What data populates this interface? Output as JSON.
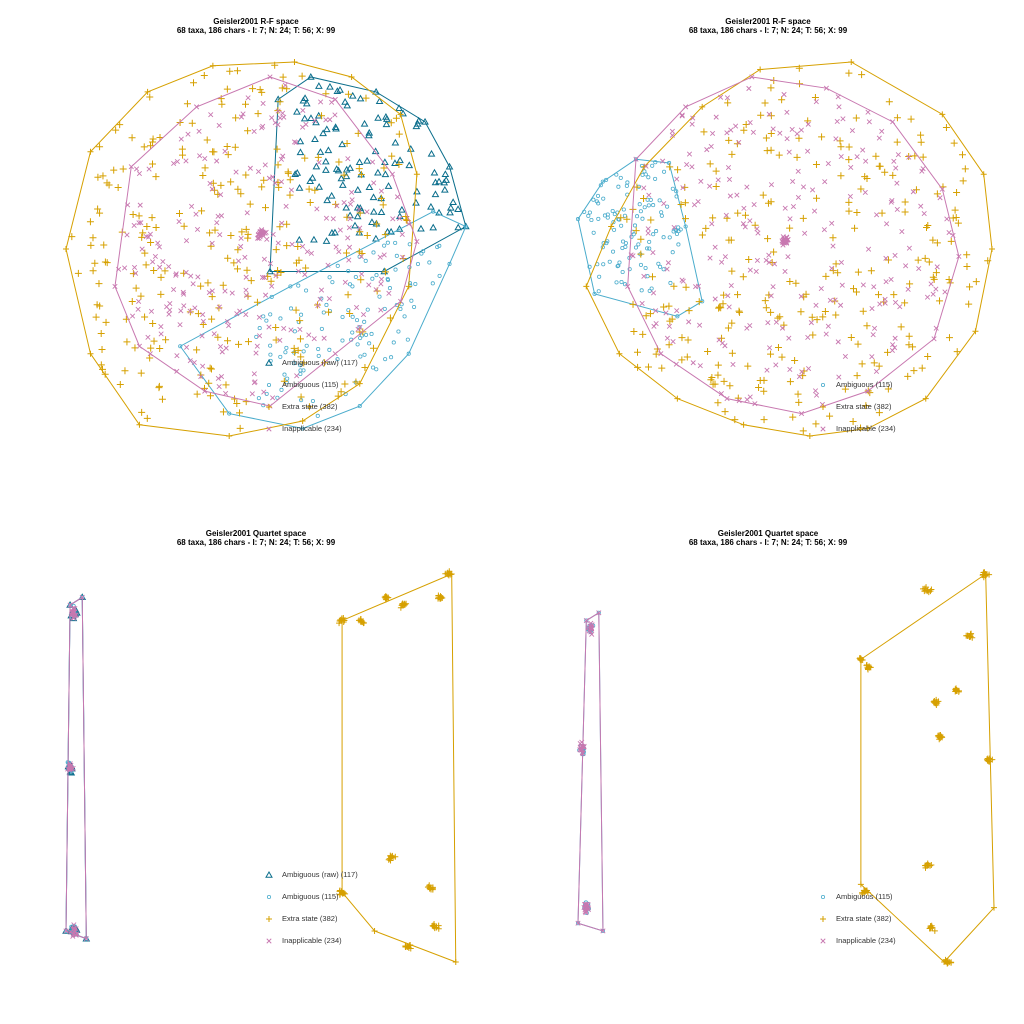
{
  "colors": {
    "ambiguous_raw": "#0b6e8c",
    "ambiguous": "#4aaccc",
    "extra_state": "#d6a000",
    "inapplicable": "#c878b0"
  },
  "chart_data": [
    {
      "type": "scatter",
      "title": "Geisler2001 R-F space",
      "subtitle": "68 taxa, 186 chars - I: 7; N: 24; T: 56; X: 99",
      "xlabel": "",
      "ylabel": "",
      "axes": false,
      "grid": false,
      "xlim": [
        0,
        1
      ],
      "ylim": [
        0,
        1
      ],
      "legend_position": "bottom-center",
      "series": [
        {
          "name": "Ambiguous (raw) (117)",
          "key": "ambiguous_raw",
          "marker": "triangle",
          "count": 117,
          "hull": [
            [
              0.5,
              0.44
            ],
            [
              0.52,
              0.9
            ],
            [
              0.6,
              0.96
            ],
            [
              0.76,
              0.92
            ],
            [
              0.88,
              0.84
            ],
            [
              0.94,
              0.72
            ],
            [
              0.98,
              0.56
            ],
            [
              0.78,
              0.44
            ]
          ],
          "cluster": {
            "cx": 0.78,
            "cy": 0.74,
            "rx": 0.2,
            "ry": 0.2
          }
        },
        {
          "name": "Ambiguous (115)",
          "key": "ambiguous",
          "marker": "circle",
          "count": 115,
          "hull": [
            [
              0.28,
              0.24
            ],
            [
              0.4,
              0.06
            ],
            [
              0.58,
              0.02
            ],
            [
              0.72,
              0.08
            ],
            [
              0.84,
              0.22
            ],
            [
              0.94,
              0.46
            ],
            [
              0.98,
              0.56
            ],
            [
              0.9,
              0.6
            ],
            [
              0.55,
              0.4
            ]
          ],
          "cluster": {
            "cx": 0.72,
            "cy": 0.28,
            "rx": 0.24,
            "ry": 0.22
          }
        },
        {
          "name": "Extra state (382)",
          "key": "extra_state",
          "marker": "plus",
          "count": 382,
          "hull": [
            [
              0.0,
              0.5
            ],
            [
              0.06,
              0.76
            ],
            [
              0.2,
              0.92
            ],
            [
              0.36,
              0.99
            ],
            [
              0.56,
              1.0
            ],
            [
              0.7,
              0.96
            ],
            [
              0.82,
              0.86
            ],
            [
              0.86,
              0.7
            ],
            [
              0.84,
              0.4
            ],
            [
              0.72,
              0.14
            ],
            [
              0.58,
              0.04
            ],
            [
              0.4,
              0.0
            ],
            [
              0.18,
              0.03
            ],
            [
              0.06,
              0.22
            ]
          ],
          "cluster": {
            "cx": 0.44,
            "cy": 0.52,
            "rx": 0.42,
            "ry": 0.46
          }
        },
        {
          "name": "Inapplicable (234)",
          "key": "inapplicable",
          "marker": "x",
          "count": 234,
          "hull": [
            [
              0.16,
              0.72
            ],
            [
              0.32,
              0.88
            ],
            [
              0.5,
              0.96
            ],
            [
              0.66,
              0.9
            ],
            [
              0.8,
              0.7
            ],
            [
              0.86,
              0.52
            ],
            [
              0.82,
              0.36
            ],
            [
              0.66,
              0.22
            ],
            [
              0.5,
              0.08
            ],
            [
              0.34,
              0.12
            ],
            [
              0.18,
              0.24
            ],
            [
              0.12,
              0.4
            ]
          ],
          "cluster": {
            "cx": 0.48,
            "cy": 0.54,
            "rx": 0.34,
            "ry": 0.4
          },
          "dense": {
            "cx": 0.48,
            "cy": 0.54
          }
        }
      ]
    },
    {
      "type": "scatter",
      "title": "Geisler2001 R-F space",
      "subtitle": "68 taxa, 186 chars - I: 7; N: 24; T: 56; X: 99",
      "xlabel": "",
      "ylabel": "",
      "axes": false,
      "grid": false,
      "xlim": [
        0,
        1
      ],
      "ylim": [
        0,
        1
      ],
      "legend_position": "bottom-right",
      "series": [
        {
          "name": "Ambiguous (115)",
          "key": "ambiguous",
          "marker": "circle",
          "count": 115,
          "hull": [
            [
              0.0,
              0.58
            ],
            [
              0.06,
              0.68
            ],
            [
              0.14,
              0.74
            ],
            [
              0.22,
              0.73
            ],
            [
              0.26,
              0.56
            ],
            [
              0.3,
              0.36
            ],
            [
              0.24,
              0.32
            ],
            [
              0.04,
              0.38
            ]
          ],
          "cluster": {
            "cx": 0.12,
            "cy": 0.56,
            "rx": 0.12,
            "ry": 0.16
          }
        },
        {
          "name": "Extra state (382)",
          "key": "extra_state",
          "marker": "plus",
          "count": 382,
          "hull": [
            [
              0.02,
              0.4
            ],
            [
              0.1,
              0.22
            ],
            [
              0.24,
              0.1
            ],
            [
              0.4,
              0.03
            ],
            [
              0.56,
              0.0
            ],
            [
              0.7,
              0.02
            ],
            [
              0.84,
              0.1
            ],
            [
              0.96,
              0.28
            ],
            [
              1.0,
              0.5
            ],
            [
              0.98,
              0.7
            ],
            [
              0.88,
              0.86
            ],
            [
              0.66,
              1.0
            ],
            [
              0.44,
              0.98
            ],
            [
              0.3,
              0.88
            ],
            [
              0.16,
              0.72
            ],
            [
              0.08,
              0.56
            ]
          ],
          "cluster": {
            "cx": 0.56,
            "cy": 0.5,
            "rx": 0.42,
            "ry": 0.46
          }
        },
        {
          "name": "Inapplicable (234)",
          "key": "inapplicable",
          "marker": "x",
          "count": 234,
          "hull": [
            [
              0.12,
              0.4
            ],
            [
              0.14,
              0.74
            ],
            [
              0.26,
              0.88
            ],
            [
              0.42,
              0.96
            ],
            [
              0.6,
              0.93
            ],
            [
              0.76,
              0.84
            ],
            [
              0.88,
              0.66
            ],
            [
              0.92,
              0.48
            ],
            [
              0.86,
              0.26
            ],
            [
              0.7,
              0.12
            ],
            [
              0.54,
              0.06
            ],
            [
              0.36,
              0.1
            ],
            [
              0.2,
              0.22
            ]
          ],
          "cluster": {
            "cx": 0.52,
            "cy": 0.52,
            "rx": 0.36,
            "ry": 0.4
          },
          "dense": {
            "cx": 0.5,
            "cy": 0.52
          }
        }
      ]
    },
    {
      "type": "scatter",
      "title": "Geisler2001 Quartet space",
      "subtitle": "68 taxa, 186 chars - I: 7; N: 24; T: 56; X: 99",
      "xlabel": "",
      "ylabel": "",
      "axes": false,
      "grid": false,
      "xlim": [
        0,
        1
      ],
      "ylim": [
        0,
        1
      ],
      "legend_position": "bottom-center",
      "series": [
        {
          "name": "Ambiguous (raw) (117)",
          "key": "ambiguous_raw",
          "marker": "triangle",
          "count": 117,
          "hull": [
            [
              0.0,
              0.08
            ],
            [
              0.01,
              0.92
            ],
            [
              0.04,
              0.94
            ],
            [
              0.05,
              0.06
            ]
          ],
          "clumps": [
            [
              0.02,
              0.9
            ],
            [
              0.01,
              0.5
            ],
            [
              0.02,
              0.08
            ]
          ]
        },
        {
          "name": "Ambiguous (115)",
          "key": "ambiguous",
          "marker": "circle",
          "count": 115,
          "hull": [
            [
              0.0,
              0.08
            ],
            [
              0.01,
              0.92
            ],
            [
              0.04,
              0.94
            ],
            [
              0.05,
              0.06
            ]
          ],
          "clumps": [
            [
              0.02,
              0.9
            ],
            [
              0.01,
              0.5
            ],
            [
              0.02,
              0.08
            ]
          ]
        },
        {
          "name": "Extra state (382)",
          "key": "extra_state",
          "marker": "plus",
          "count": 382,
          "hull": [
            [
              0.68,
              0.88
            ],
            [
              0.95,
              1.0
            ],
            [
              0.96,
              0.0
            ],
            [
              0.76,
              0.08
            ],
            [
              0.68,
              0.18
            ]
          ],
          "clumps": [
            [
              0.94,
              1.0
            ],
            [
              0.79,
              0.94
            ],
            [
              0.83,
              0.92
            ],
            [
              0.92,
              0.94
            ],
            [
              0.68,
              0.88
            ],
            [
              0.73,
              0.88
            ],
            [
              0.8,
              0.27
            ],
            [
              0.9,
              0.19
            ],
            [
              0.91,
              0.09
            ],
            [
              0.84,
              0.04
            ],
            [
              0.68,
              0.18
            ]
          ]
        },
        {
          "name": "Inapplicable (234)",
          "key": "inapplicable",
          "marker": "x",
          "count": 234,
          "hull": [
            [
              0.0,
              0.08
            ],
            [
              0.01,
              0.92
            ],
            [
              0.04,
              0.94
            ],
            [
              0.05,
              0.06
            ]
          ],
          "clumps": [
            [
              0.02,
              0.9
            ],
            [
              0.01,
              0.5
            ],
            [
              0.02,
              0.08
            ]
          ]
        }
      ]
    },
    {
      "type": "scatter",
      "title": "Geisler2001 Quartet space",
      "subtitle": "68 taxa, 186 chars - I: 7; N: 24; T: 56; X: 99",
      "xlabel": "",
      "ylabel": "",
      "axes": false,
      "grid": false,
      "xlim": [
        0,
        1
      ],
      "ylim": [
        0,
        1
      ],
      "legend_position": "bottom-right",
      "series": [
        {
          "name": "Ambiguous (115)",
          "key": "ambiguous",
          "marker": "circle",
          "count": 115,
          "hull": [
            [
              0.0,
              0.1
            ],
            [
              0.02,
              0.88
            ],
            [
              0.05,
              0.9
            ],
            [
              0.06,
              0.08
            ]
          ],
          "clumps": [
            [
              0.03,
              0.86
            ],
            [
              0.01,
              0.55
            ],
            [
              0.02,
              0.14
            ]
          ]
        },
        {
          "name": "Extra state (382)",
          "key": "extra_state",
          "marker": "plus",
          "count": 382,
          "hull": [
            [
              0.68,
              0.78
            ],
            [
              0.98,
              1.0
            ],
            [
              1.0,
              0.14
            ],
            [
              0.88,
              0.0
            ],
            [
              0.68,
              0.2
            ]
          ],
          "clumps": [
            [
              0.84,
              0.96
            ],
            [
              0.98,
              1.0
            ],
            [
              0.94,
              0.84
            ],
            [
              0.68,
              0.78
            ],
            [
              0.7,
              0.76
            ],
            [
              0.86,
              0.67
            ],
            [
              0.91,
              0.7
            ],
            [
              0.87,
              0.58
            ],
            [
              0.99,
              0.52
            ],
            [
              0.84,
              0.25
            ],
            [
              0.69,
              0.18
            ],
            [
              0.85,
              0.09
            ],
            [
              0.89,
              0.0
            ]
          ]
        },
        {
          "name": "Inapplicable (234)",
          "key": "inapplicable",
          "marker": "x",
          "count": 234,
          "hull": [
            [
              0.0,
              0.1
            ],
            [
              0.02,
              0.88
            ],
            [
              0.05,
              0.9
            ],
            [
              0.06,
              0.08
            ]
          ],
          "clumps": [
            [
              0.03,
              0.86
            ],
            [
              0.01,
              0.55
            ],
            [
              0.02,
              0.14
            ]
          ]
        }
      ]
    }
  ]
}
